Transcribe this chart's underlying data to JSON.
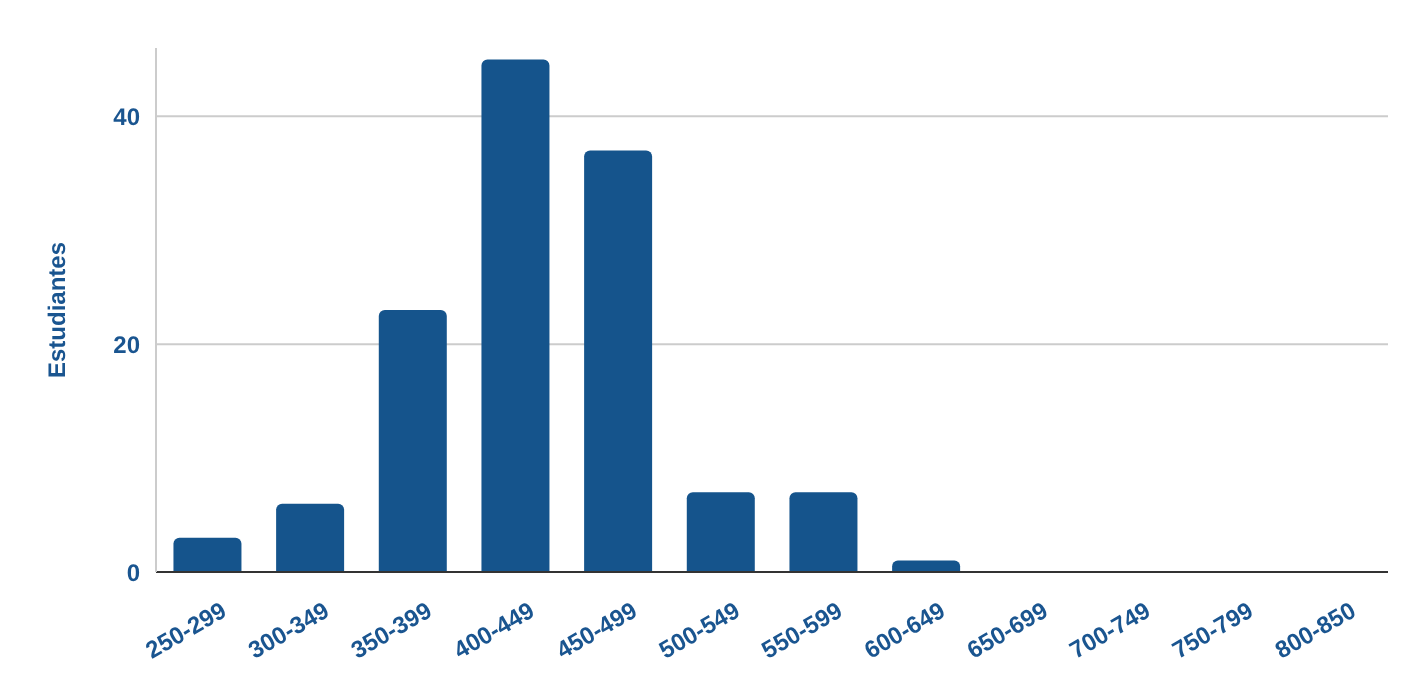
{
  "chart_data": {
    "type": "bar",
    "ylabel": "Estudiantes",
    "categories": [
      "250-299",
      "300-349",
      "350-399",
      "400-449",
      "450-499",
      "500-549",
      "550-599",
      "600-649",
      "650-699",
      "700-749",
      "750-799",
      "800-850"
    ],
    "values": [
      3,
      6,
      23,
      45,
      37,
      7,
      7,
      1,
      0,
      0,
      0,
      0
    ],
    "color": "#15548c",
    "ylim": [
      0,
      46
    ],
    "yticks": [
      0,
      20,
      40
    ],
    "grid": "y",
    "legend": false
  }
}
